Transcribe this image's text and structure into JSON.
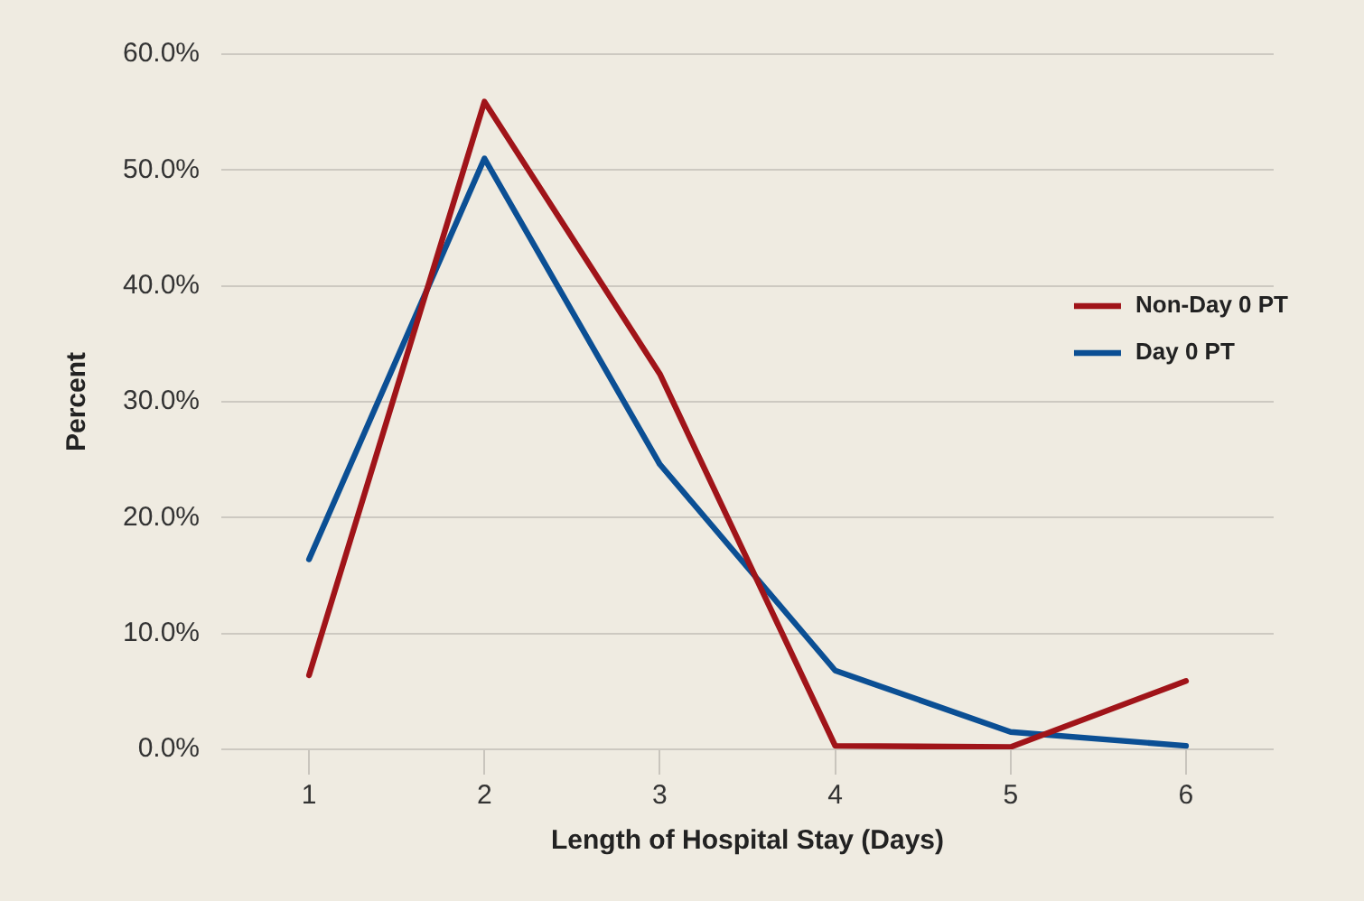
{
  "chart_data": {
    "type": "line",
    "xlabel": "Length of Hospital Stay (Days)",
    "ylabel": "Percent",
    "categories": [
      "1",
      "2",
      "3",
      "4",
      "5",
      "6"
    ],
    "series": [
      {
        "name": "Non-Day 0 PT",
        "color": "#a01419",
        "values": [
          6.4,
          55.9,
          32.4,
          0.3,
          0.2,
          5.9
        ]
      },
      {
        "name": "Day 0 PT",
        "color": "#0b4f94",
        "values": [
          16.4,
          51.0,
          24.6,
          6.8,
          1.5,
          0.3
        ]
      }
    ],
    "ylim": [
      0,
      60
    ],
    "yticks": [
      {
        "value": 0,
        "label": "0.0%"
      },
      {
        "value": 10,
        "label": "10.0%"
      },
      {
        "value": 20,
        "label": "20.0%"
      },
      {
        "value": 30,
        "label": "30.0%"
      },
      {
        "value": 40,
        "label": "40.0%"
      },
      {
        "value": 50,
        "label": "50.0%"
      },
      {
        "value": 60,
        "label": "60.0%"
      }
    ],
    "grid": "y",
    "legend": "right",
    "marker": "none",
    "line_style": "solid"
  }
}
